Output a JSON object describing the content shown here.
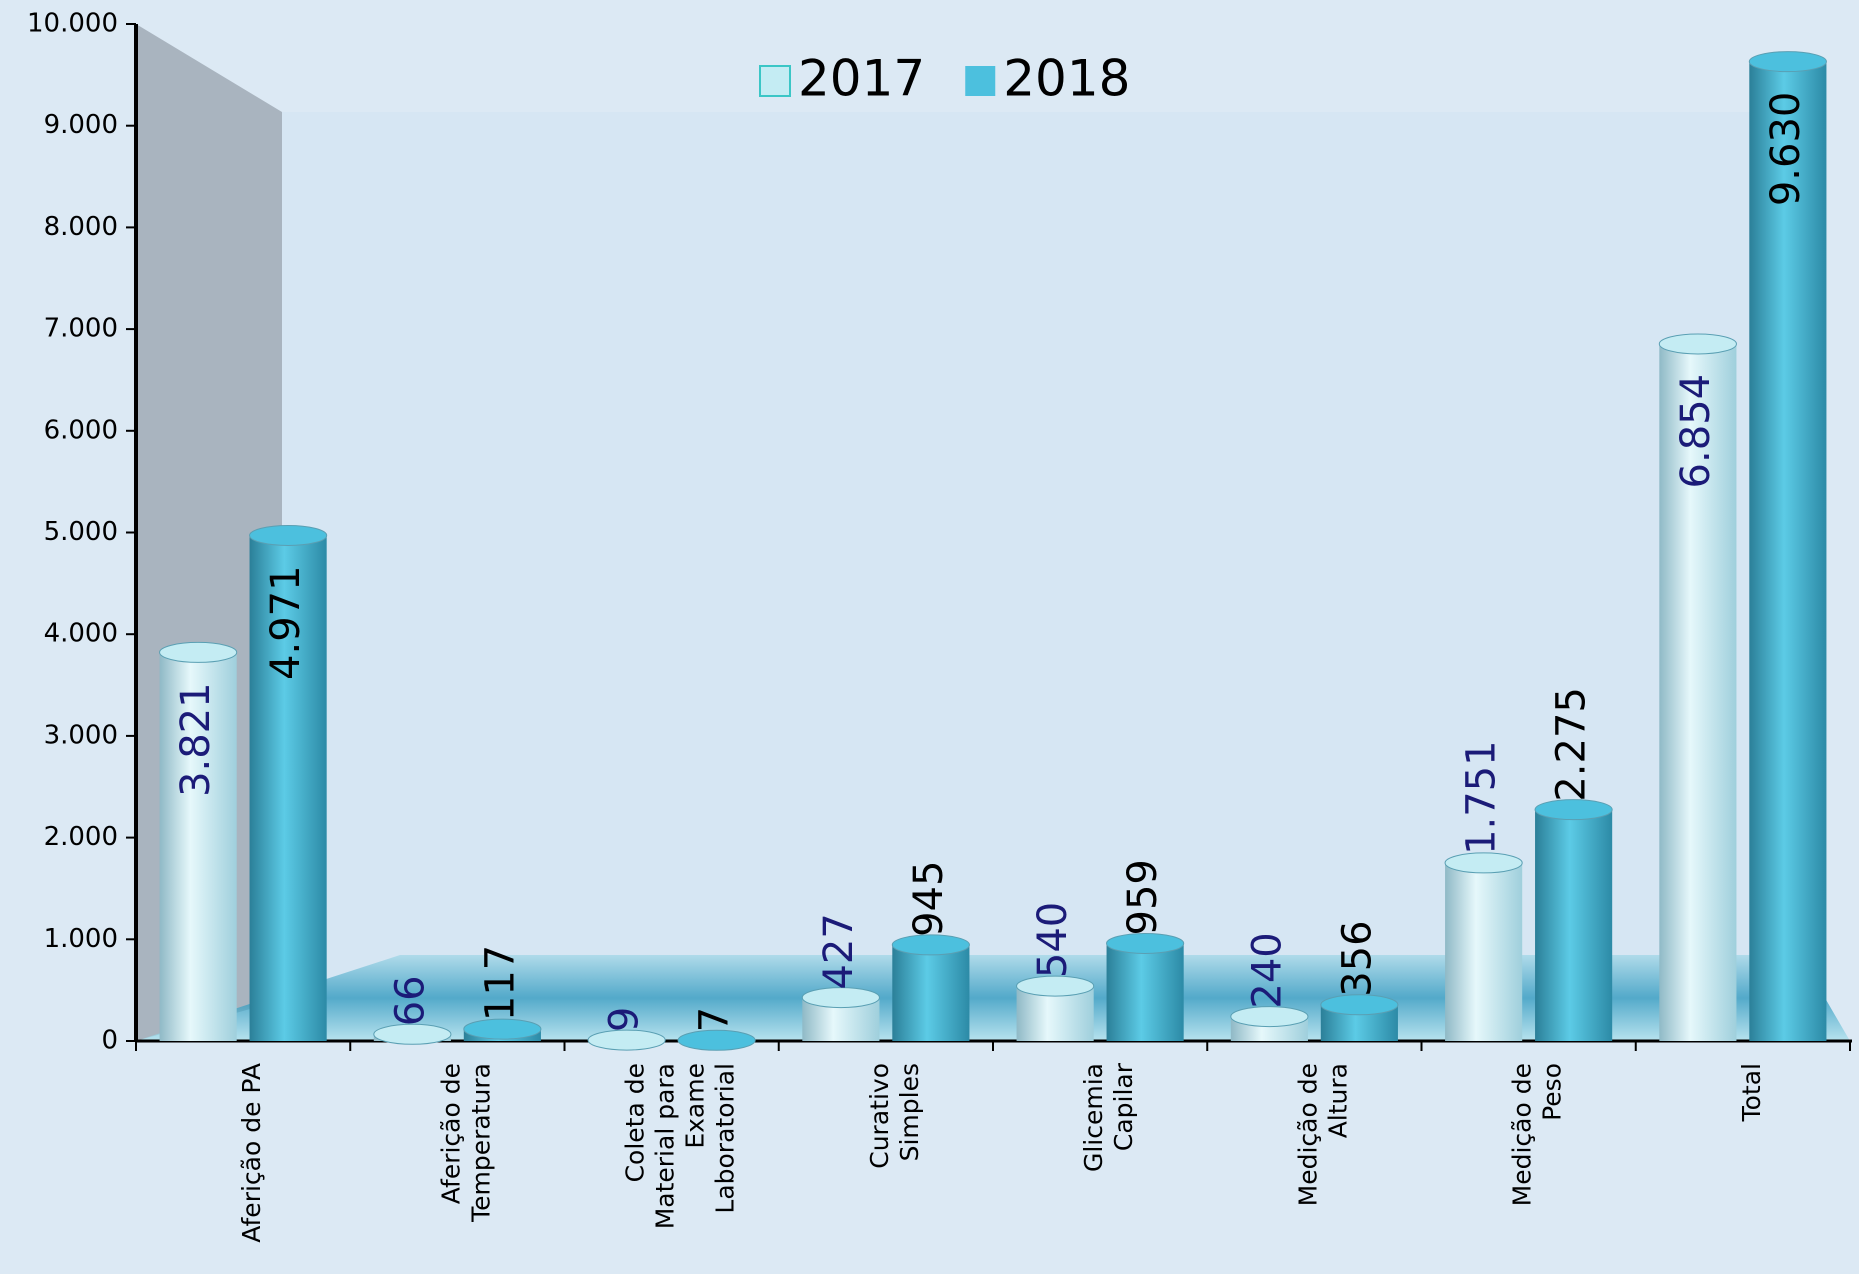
{
  "chart_data": {
    "type": "bar",
    "categories": [
      "Aferição de PA",
      "Aferição de\nTemperatura",
      "Coleta de\nMaterial para\nExame\nLaboratorial",
      "Curativo\nSimples",
      "Glicemia\nCapilar",
      "Medição de\nAltura",
      "Medição de\nPeso",
      "Total"
    ],
    "series": [
      {
        "name": "2017",
        "color": "#c4ecf3",
        "label_color": "#1b1b78",
        "values": [
          3821,
          66,
          9,
          427,
          540,
          240,
          1751,
          6854
        ],
        "value_labels": [
          "3.821",
          "66",
          "9",
          "427",
          "540",
          "240",
          "1.751",
          "6.854"
        ]
      },
      {
        "name": "2018",
        "color": "#4cc0de",
        "label_color": "#000000",
        "values": [
          4971,
          117,
          7,
          945,
          959,
          356,
          2275,
          9630
        ],
        "value_labels": [
          "4.971",
          "117",
          "7",
          "945",
          "959",
          "356",
          "2.275",
          "9.630"
        ]
      }
    ],
    "ylim": [
      0,
      10000
    ],
    "yticks": [
      0,
      {
        "value": 1000,
        "label": "1.000"
      },
      {
        "value": 2000,
        "label": "2.000"
      },
      {
        "value": 3000,
        "label": "3.000"
      },
      {
        "value": 4000,
        "label": "4.000"
      },
      {
        "value": 5000,
        "label": "5.000"
      },
      {
        "value": 6000,
        "label": "6.000"
      },
      {
        "value": 7000,
        "label": "7.000"
      },
      {
        "value": 8000,
        "label": "8.000"
      },
      {
        "value": 9000,
        "label": "9.000"
      },
      {
        "value": 10000,
        "label": "10.000"
      }
    ],
    "legend": "top"
  }
}
